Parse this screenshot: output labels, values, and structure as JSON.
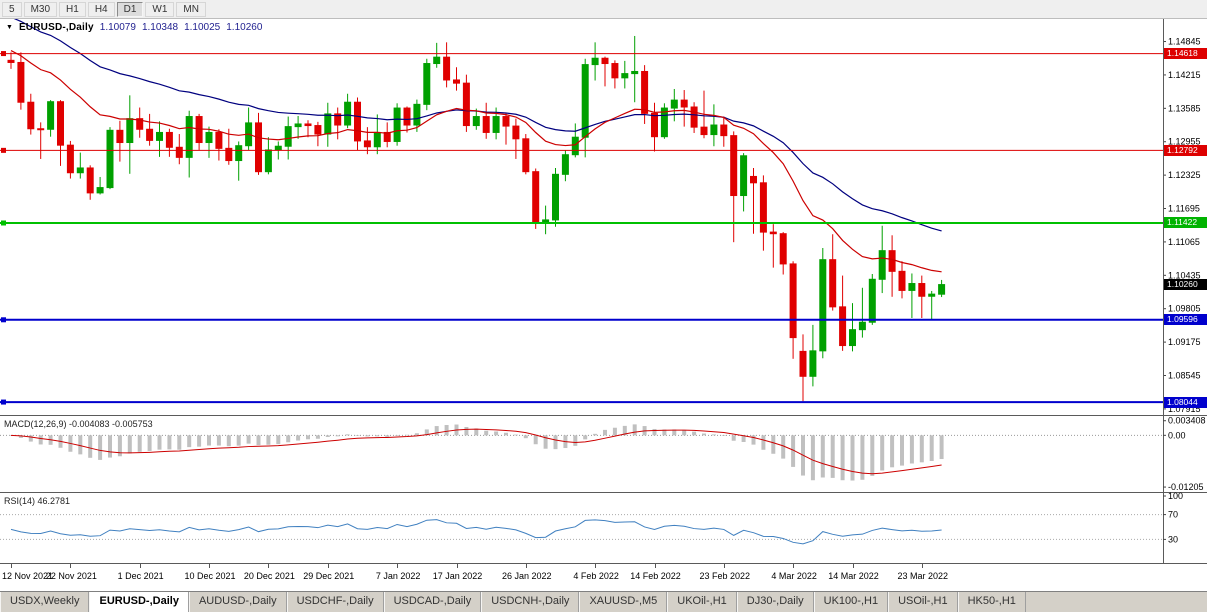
{
  "toolbar": {
    "timeframes": [
      "5",
      "M30",
      "H1",
      "H4",
      "D1",
      "W1",
      "MN"
    ],
    "active": "D1"
  },
  "chart_header": {
    "dropdown_icon": "▼",
    "symbol": "EURUSD-,Daily",
    "open": "1.10079",
    "high": "1.10348",
    "low": "1.10025",
    "close": "1.10260"
  },
  "price_axis": {
    "ticks": [
      "1.14845",
      "1.14215",
      "1.13585",
      "1.12955",
      "1.12325",
      "1.11695",
      "1.11065",
      "1.10435",
      "1.09805",
      "1.09175",
      "1.08545",
      "1.07915"
    ],
    "badges": [
      {
        "text": "1.14618",
        "color": "#dd0000"
      },
      {
        "text": "1.12792",
        "color": "#dd0000"
      },
      {
        "text": "1.11422",
        "color": "#00b300"
      },
      {
        "text": "1.10260",
        "color": "#000000"
      },
      {
        "text": "1.09596",
        "color": "#0000cd"
      },
      {
        "text": "1.08044",
        "color": "#0000cd"
      }
    ]
  },
  "hlines": [
    {
      "price": 1.14618,
      "color": "#dd0000",
      "width": 1
    },
    {
      "price": 1.12792,
      "color": "#dd0000",
      "width": 1
    },
    {
      "price": 1.11422,
      "color": "#00c000",
      "width": 2
    },
    {
      "price": 1.09596,
      "color": "#0000cd",
      "width": 2
    },
    {
      "price": 1.08044,
      "color": "#0000cd",
      "width": 2
    }
  ],
  "macd_panel": {
    "label": "MACD(12,26,9) -0.004083 -0.005753",
    "axis": [
      {
        "text": "0.003408",
        "value": 0.0034
      },
      {
        "text": "0.00",
        "value": 0
      },
      {
        "text": "-0.01205",
        "value": -0.01205
      }
    ],
    "range": [
      -0.0132,
      0.0045
    ]
  },
  "rsi_panel": {
    "label": "RSI(14) 46.2781",
    "axis": [
      {
        "text": "100",
        "value": 100
      },
      {
        "text": "70",
        "value": 70
      },
      {
        "text": "30",
        "value": 30
      }
    ],
    "levels": [
      70,
      30
    ]
  },
  "date_axis": {
    "labels": [
      {
        "text": "12 Nov 2021",
        "index": 0
      },
      {
        "text": "22 Nov 2021",
        "index": 6
      },
      {
        "text": "1 Dec 2021",
        "index": 13
      },
      {
        "text": "10 Dec 2021",
        "index": 20
      },
      {
        "text": "20 Dec 2021",
        "index": 26
      },
      {
        "text": "29 Dec 2021",
        "index": 32
      },
      {
        "text": "7 Jan 2022",
        "index": 39
      },
      {
        "text": "17 Jan 2022",
        "index": 45
      },
      {
        "text": "26 Jan 2022",
        "index": 52
      },
      {
        "text": "4 Feb 2022",
        "index": 59
      },
      {
        "text": "14 Feb 2022",
        "index": 65
      },
      {
        "text": "23 Feb 2022",
        "index": 72
      },
      {
        "text": "4 Mar 2022",
        "index": 79
      },
      {
        "text": "14 Mar 2022",
        "index": 85
      },
      {
        "text": "23 Mar 2022",
        "index": 92
      }
    ]
  },
  "tabs": {
    "items": [
      "USDX,Weekly",
      "EURUSD-,Daily",
      "AUDUSD-,Daily",
      "USDCHF-,Daily",
      "USDCAD-,Daily",
      "USDCNH-,Daily",
      "XAUUSD-,M5",
      "UKOil-,H1",
      "DJ30-,Daily",
      "UK100-,H1",
      "USOil-,H1",
      "HK50-,H1"
    ],
    "active": "EURUSD-,Daily"
  },
  "chart_data": {
    "type": "candlestick",
    "symbol": "EURUSD",
    "timeframe": "Daily",
    "x_range": [
      "12 Nov 2021",
      "25 Mar 2022"
    ],
    "y_range": [
      1.078,
      1.1527
    ],
    "colors": {
      "bull": "#00a000",
      "bear": "#e00000",
      "ma_fast": "#cc0000",
      "ma_slow": "#00007f",
      "macd_bar": "#c0c0c0",
      "macd_signal": "#cc0000",
      "rsi": "#4080c0"
    },
    "indicators": {
      "ma_fast": {
        "type": "ema",
        "alpha": 0.1,
        "seed": 1.147
      },
      "ma_slow": {
        "type": "ema",
        "alpha": 0.05,
        "seed": 1.1535
      },
      "macd": {
        "fast": 12,
        "slow": 26,
        "signal": 9
      },
      "rsi": {
        "period": 14,
        "seed_gain": 0.003,
        "seed_loss": 0.0035
      }
    },
    "ohlc": [
      [
        1.1449,
        1.1464,
        1.1433,
        1.1445
      ],
      [
        1.1445,
        1.1464,
        1.1356,
        1.137
      ],
      [
        1.137,
        1.1386,
        1.1309,
        1.132
      ],
      [
        1.132,
        1.1332,
        1.1263,
        1.1319
      ],
      [
        1.1319,
        1.1374,
        1.1305,
        1.1371
      ],
      [
        1.1371,
        1.1374,
        1.125,
        1.1289
      ],
      [
        1.1289,
        1.1297,
        1.1226,
        1.1237
      ],
      [
        1.1237,
        1.1275,
        1.1226,
        1.1246
      ],
      [
        1.1246,
        1.1251,
        1.1186,
        1.1199
      ],
      [
        1.1199,
        1.1229,
        1.1196,
        1.1209
      ],
      [
        1.1209,
        1.1323,
        1.1206,
        1.1317
      ],
      [
        1.1317,
        1.1335,
        1.1258,
        1.1294
      ],
      [
        1.1294,
        1.1383,
        1.1235,
        1.1339
      ],
      [
        1.1339,
        1.136,
        1.1303,
        1.1319
      ],
      [
        1.1319,
        1.1348,
        1.1288,
        1.1298
      ],
      [
        1.1298,
        1.1334,
        1.1267,
        1.1313
      ],
      [
        1.1313,
        1.132,
        1.1267,
        1.1285
      ],
      [
        1.1285,
        1.131,
        1.1253,
        1.1266
      ],
      [
        1.1266,
        1.1354,
        1.1228,
        1.1343
      ],
      [
        1.1343,
        1.1348,
        1.128,
        1.1294
      ],
      [
        1.1294,
        1.1324,
        1.1265,
        1.1313
      ],
      [
        1.1313,
        1.1319,
        1.126,
        1.1283
      ],
      [
        1.1283,
        1.132,
        1.1252,
        1.126
      ],
      [
        1.126,
        1.1296,
        1.1222,
        1.1288
      ],
      [
        1.1288,
        1.136,
        1.128,
        1.1331
      ],
      [
        1.1331,
        1.135,
        1.1233,
        1.1239
      ],
      [
        1.1239,
        1.1304,
        1.1234,
        1.128
      ],
      [
        1.128,
        1.1296,
        1.1262,
        1.1287
      ],
      [
        1.1287,
        1.1343,
        1.1262,
        1.1324
      ],
      [
        1.1324,
        1.1344,
        1.1301,
        1.1329
      ],
      [
        1.1329,
        1.1336,
        1.1304,
        1.1326
      ],
      [
        1.1326,
        1.1333,
        1.1287,
        1.131
      ],
      [
        1.131,
        1.1369,
        1.1286,
        1.1348
      ],
      [
        1.1348,
        1.136,
        1.13,
        1.1327
      ],
      [
        1.1327,
        1.1386,
        1.1321,
        1.137
      ],
      [
        1.137,
        1.1379,
        1.1279,
        1.1297
      ],
      [
        1.1297,
        1.1323,
        1.1272,
        1.1286
      ],
      [
        1.1286,
        1.1347,
        1.1272,
        1.1313
      ],
      [
        1.1313,
        1.1332,
        1.1285,
        1.1296
      ],
      [
        1.1296,
        1.1368,
        1.1288,
        1.1359
      ],
      [
        1.1359,
        1.1362,
        1.1313,
        1.1327
      ],
      [
        1.1327,
        1.1375,
        1.1314,
        1.1366
      ],
      [
        1.1366,
        1.1452,
        1.1355,
        1.1443
      ],
      [
        1.1443,
        1.1482,
        1.1435,
        1.1455
      ],
      [
        1.1455,
        1.1483,
        1.1398,
        1.1412
      ],
      [
        1.1412,
        1.1436,
        1.1392,
        1.1406
      ],
      [
        1.1406,
        1.1422,
        1.1314,
        1.1326
      ],
      [
        1.1326,
        1.1358,
        1.1318,
        1.1343
      ],
      [
        1.1343,
        1.1369,
        1.1301,
        1.1313
      ],
      [
        1.1313,
        1.136,
        1.13,
        1.1343
      ],
      [
        1.1343,
        1.1349,
        1.129,
        1.1325
      ],
      [
        1.1325,
        1.1339,
        1.1263,
        1.1301
      ],
      [
        1.1301,
        1.131,
        1.1234,
        1.1239
      ],
      [
        1.1239,
        1.1245,
        1.1131,
        1.1143
      ],
      [
        1.1143,
        1.1175,
        1.1121,
        1.1148
      ],
      [
        1.1148,
        1.1246,
        1.1135,
        1.1234
      ],
      [
        1.1234,
        1.1279,
        1.1221,
        1.1271
      ],
      [
        1.1271,
        1.133,
        1.1266,
        1.1304
      ],
      [
        1.1304,
        1.1452,
        1.1266,
        1.1441
      ],
      [
        1.1441,
        1.1483,
        1.1411,
        1.1453
      ],
      [
        1.1453,
        1.1456,
        1.14,
        1.1443
      ],
      [
        1.1443,
        1.1449,
        1.1396,
        1.1416
      ],
      [
        1.1416,
        1.1448,
        1.1396,
        1.1424
      ],
      [
        1.1424,
        1.1495,
        1.137,
        1.1428
      ],
      [
        1.1428,
        1.144,
        1.1329,
        1.1349
      ],
      [
        1.1349,
        1.1369,
        1.1277,
        1.1305
      ],
      [
        1.1305,
        1.1368,
        1.1301,
        1.1359
      ],
      [
        1.1359,
        1.1395,
        1.1334,
        1.1374
      ],
      [
        1.1374,
        1.1393,
        1.1324,
        1.1361
      ],
      [
        1.1361,
        1.137,
        1.1312,
        1.1323
      ],
      [
        1.1323,
        1.1392,
        1.1302,
        1.1309
      ],
      [
        1.1309,
        1.1366,
        1.1287,
        1.1327
      ],
      [
        1.1327,
        1.1343,
        1.1286,
        1.1307
      ],
      [
        1.1307,
        1.1315,
        1.1106,
        1.1194
      ],
      [
        1.1194,
        1.1274,
        1.1164,
        1.1269
      ],
      [
        1.123,
        1.1246,
        1.1122,
        1.1218
      ],
      [
        1.1218,
        1.1232,
        1.109,
        1.1125
      ],
      [
        1.1125,
        1.114,
        1.1058,
        1.1122
      ],
      [
        1.1122,
        1.1125,
        1.1045,
        1.1065
      ],
      [
        1.1065,
        1.107,
        1.0886,
        1.0926
      ],
      [
        1.09,
        1.0932,
        1.0806,
        1.0853
      ],
      [
        1.0853,
        1.095,
        1.0834,
        1.0901
      ],
      [
        1.0901,
        1.1095,
        1.0887,
        1.1073
      ],
      [
        1.1073,
        1.1121,
        1.0977,
        1.0984
      ],
      [
        1.0984,
        1.1043,
        1.0901,
        1.0911
      ],
      [
        1.0911,
        1.0991,
        1.09,
        1.0941
      ],
      [
        1.0941,
        1.102,
        1.0926,
        1.0955
      ],
      [
        1.0955,
        1.1046,
        1.095,
        1.1036
      ],
      [
        1.1036,
        1.1137,
        1.101,
        1.109
      ],
      [
        1.109,
        1.1119,
        1.1003,
        1.1051
      ],
      [
        1.1051,
        1.107,
        1.1,
        1.1015
      ],
      [
        1.1015,
        1.1047,
        1.0963,
        1.1028
      ],
      [
        1.1028,
        1.1043,
        1.0963,
        1.1004
      ],
      [
        1.1004,
        1.1014,
        1.0961,
        1.1008
      ],
      [
        1.10079,
        1.10348,
        1.10025,
        1.1026
      ]
    ]
  }
}
